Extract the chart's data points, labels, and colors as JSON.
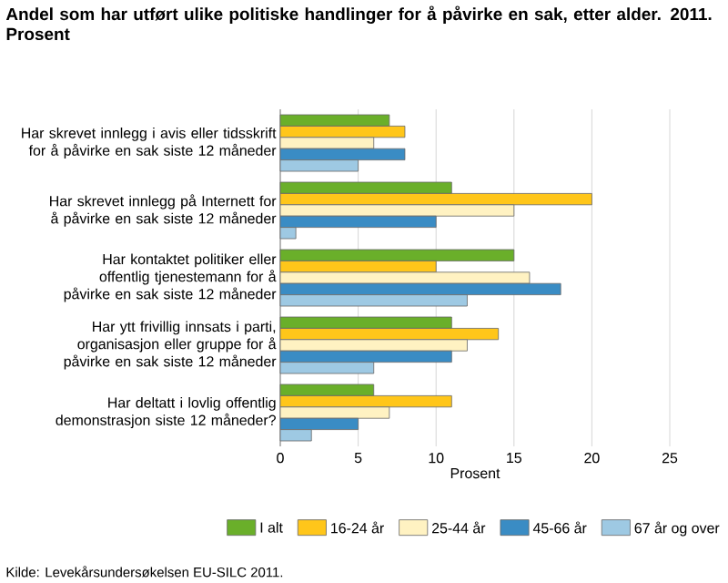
{
  "chart_data": {
    "type": "bar",
    "orientation": "horizontal",
    "title": "Andel som har utført ulike politiske handlinger for å påvirke en sak, etter alder. 2011. Prosent",
    "xlabel": "Prosent",
    "categories": [
      "Har skrevet innlegg i avis eller tidsskrift for å påvirke en sak siste 12 måneder",
      "Har skrevet innlegg på Internett for å påvirke en sak siste 12 måneder",
      "Har kontaktet politiker eller offentlig tjenestemann for å påvirke en sak siste 12 måneder",
      "Har ytt frivillig innsats i parti, organisasjon eller gruppe for å påvirke en sak siste 12 måneder",
      "Har deltatt i lovlig offentlig demonstrasjon siste 12 måneder?"
    ],
    "series": [
      {
        "name": "I alt",
        "color": "#6aaf2a",
        "values": [
          7,
          11,
          15,
          11,
          6
        ]
      },
      {
        "name": "16-24 år",
        "color": "#ffc61a",
        "values": [
          8,
          20,
          10,
          14,
          11
        ]
      },
      {
        "name": "25-44 år",
        "color": "#fff2c2",
        "values": [
          6,
          15,
          16,
          12,
          7
        ]
      },
      {
        "name": "45-66 år",
        "color": "#3a8cc4",
        "values": [
          8,
          10,
          18,
          11,
          5
        ]
      },
      {
        "name": "67 år og over",
        "color": "#9ec9e3",
        "values": [
          5,
          1,
          12,
          6,
          2
        ]
      }
    ],
    "xlim": [
      0,
      25
    ],
    "xticks": [
      0,
      5,
      10,
      15,
      20,
      25
    ],
    "grid": true,
    "legend": "bottom",
    "annotations": [
      "Kilde: Levekårsundersøkelsen EU-SILC 2011."
    ]
  }
}
